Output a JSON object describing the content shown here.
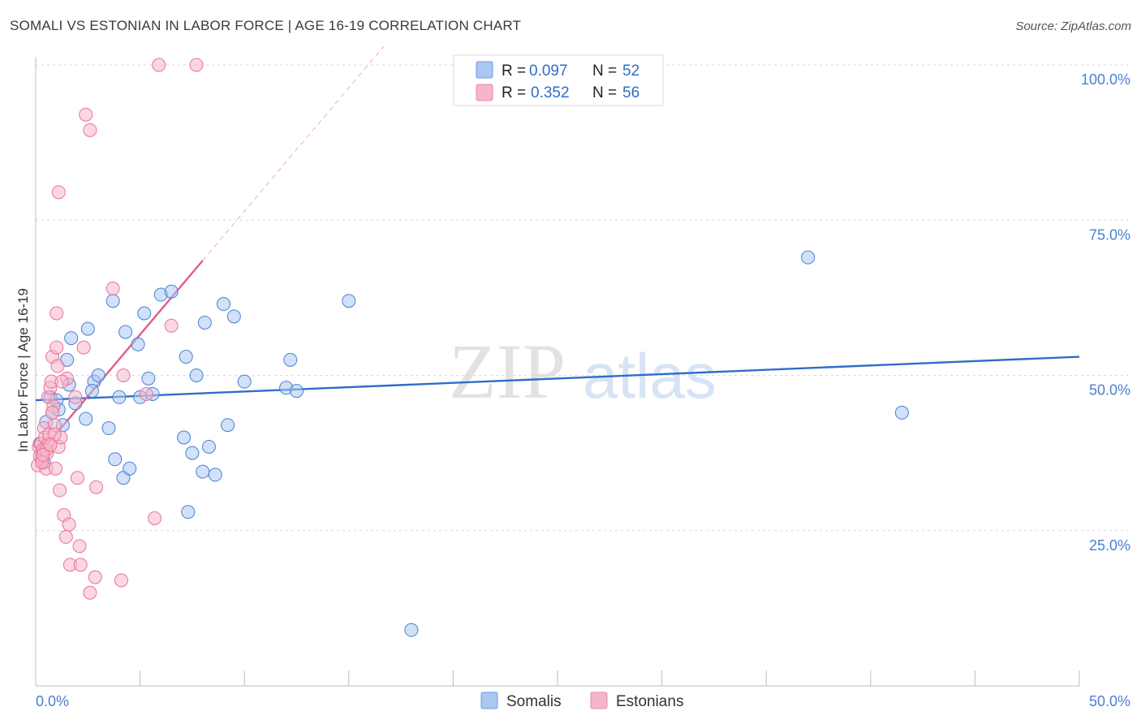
{
  "header": {
    "title": "SOMALI VS ESTONIAN IN LABOR FORCE | AGE 16-19 CORRELATION CHART",
    "source": "Source: ZipAtlas.com"
  },
  "watermark": {
    "zip": "ZIP",
    "atlas": "atlas"
  },
  "legend_box": {
    "rows": [
      {
        "r_label": "R =",
        "r_value": "0.097",
        "n_label": "N =",
        "n_value": "52",
        "color": "#a9c8f2"
      },
      {
        "r_label": "R =",
        "r_value": "0.352",
        "n_label": "N =",
        "n_value": "56",
        "color": "#f6b6c9"
      }
    ]
  },
  "bottom_legend": {
    "items": [
      "Somalis",
      "Estonians"
    ]
  },
  "chart_data": {
    "type": "scatter",
    "title": "SOMALI VS ESTONIAN IN LABOR FORCE | AGE 16-19 CORRELATION CHART",
    "xlabel": "",
    "ylabel": "In Labor Force | Age 16-19",
    "xlim": [
      0,
      50
    ],
    "ylim": [
      0,
      100
    ],
    "x_tick_labels": [
      "0.0%",
      "50.0%"
    ],
    "y_tick_labels": [
      "25.0%",
      "50.0%",
      "75.0%",
      "100.0%"
    ],
    "y_tick_values": [
      25,
      50,
      75,
      100
    ],
    "grid": true,
    "legend_position": "top-center",
    "series": [
      {
        "name": "Somalis",
        "color": "#a9c8f2",
        "stroke": "#4a7fd1",
        "trend": {
          "x": [
            0,
            50
          ],
          "y": [
            46.0,
            53.0
          ],
          "color": "#2f6dc9"
        },
        "points": [
          [
            0.5,
            42.5
          ],
          [
            0.7,
            46.5
          ],
          [
            0.8,
            44.0
          ],
          [
            1.0,
            46.0
          ],
          [
            1.1,
            44.5
          ],
          [
            1.3,
            42.0
          ],
          [
            1.5,
            52.5
          ],
          [
            1.6,
            48.5
          ],
          [
            1.7,
            56.0
          ],
          [
            1.9,
            45.5
          ],
          [
            2.5,
            57.5
          ],
          [
            2.4,
            43.0
          ],
          [
            2.8,
            49.0
          ],
          [
            3.0,
            50.0
          ],
          [
            2.7,
            47.5
          ],
          [
            3.5,
            41.5
          ],
          [
            3.7,
            62.0
          ],
          [
            3.8,
            36.5
          ],
          [
            4.0,
            46.5
          ],
          [
            4.3,
            57.0
          ],
          [
            4.2,
            33.5
          ],
          [
            4.5,
            35.0
          ],
          [
            4.9,
            55.0
          ],
          [
            5.0,
            46.5
          ],
          [
            5.2,
            60.0
          ],
          [
            5.4,
            49.5
          ],
          [
            5.6,
            47.0
          ],
          [
            6.0,
            63.0
          ],
          [
            6.5,
            63.5
          ],
          [
            7.1,
            40.0
          ],
          [
            7.2,
            53.0
          ],
          [
            7.5,
            37.5
          ],
          [
            7.7,
            50.0
          ],
          [
            8.0,
            34.5
          ],
          [
            8.1,
            58.5
          ],
          [
            8.3,
            38.5
          ],
          [
            8.6,
            34.0
          ],
          [
            9.0,
            61.5
          ],
          [
            9.2,
            42.0
          ],
          [
            9.5,
            59.5
          ],
          [
            10.0,
            49.0
          ],
          [
            12.0,
            48.0
          ],
          [
            12.2,
            52.5
          ],
          [
            12.5,
            47.5
          ],
          [
            15.0,
            62.0
          ],
          [
            18.0,
            9.0
          ],
          [
            37.0,
            69.0
          ],
          [
            41.5,
            44.0
          ],
          [
            7.3,
            28.0
          ],
          [
            0.3,
            37.5
          ],
          [
            0.4,
            36.0
          ],
          [
            0.2,
            39.0
          ]
        ]
      },
      {
        "name": "Estonians",
        "color": "#f6b6c9",
        "stroke": "#e8739a",
        "trend": {
          "x": [
            0.2,
            8.0
          ],
          "y": [
            37.5,
            68.5
          ],
          "color": "#e25c8a"
        },
        "points": [
          [
            0.1,
            35.5
          ],
          [
            0.15,
            38.5
          ],
          [
            0.2,
            37.0
          ],
          [
            0.25,
            39.0
          ],
          [
            0.3,
            36.5
          ],
          [
            0.35,
            38.0
          ],
          [
            0.4,
            41.5
          ],
          [
            0.45,
            40.0
          ],
          [
            0.5,
            35.0
          ],
          [
            0.55,
            37.5
          ],
          [
            0.6,
            39.0
          ],
          [
            0.6,
            46.5
          ],
          [
            0.7,
            48.0
          ],
          [
            0.75,
            49.0
          ],
          [
            0.8,
            53.0
          ],
          [
            0.85,
            45.0
          ],
          [
            0.9,
            42.0
          ],
          [
            0.95,
            35.0
          ],
          [
            1.0,
            54.5
          ],
          [
            1.05,
            51.5
          ],
          [
            1.0,
            60.0
          ],
          [
            1.1,
            38.5
          ],
          [
            1.15,
            31.5
          ],
          [
            1.2,
            40.0
          ],
          [
            1.1,
            79.5
          ],
          [
            1.35,
            27.5
          ],
          [
            1.45,
            24.0
          ],
          [
            1.5,
            49.5
          ],
          [
            1.6,
            26.0
          ],
          [
            1.65,
            19.5
          ],
          [
            1.9,
            46.5
          ],
          [
            2.0,
            33.5
          ],
          [
            2.1,
            22.5
          ],
          [
            2.15,
            19.5
          ],
          [
            2.3,
            54.5
          ],
          [
            2.4,
            92.0
          ],
          [
            2.6,
            89.5
          ],
          [
            2.6,
            15.0
          ],
          [
            2.85,
            17.5
          ],
          [
            2.9,
            32.0
          ],
          [
            3.7,
            64.0
          ],
          [
            4.1,
            17.0
          ],
          [
            4.2,
            50.0
          ],
          [
            5.3,
            47.0
          ],
          [
            5.7,
            27.0
          ],
          [
            5.9,
            100.0
          ],
          [
            6.5,
            58.0
          ],
          [
            7.7,
            100.0
          ],
          [
            0.3,
            36.0
          ],
          [
            0.65,
            40.5
          ],
          [
            0.5,
            38.0
          ],
          [
            0.35,
            37.2
          ],
          [
            0.8,
            44.0
          ],
          [
            1.25,
            49.0
          ],
          [
            0.9,
            40.5
          ],
          [
            0.7,
            38.8
          ]
        ]
      }
    ]
  }
}
